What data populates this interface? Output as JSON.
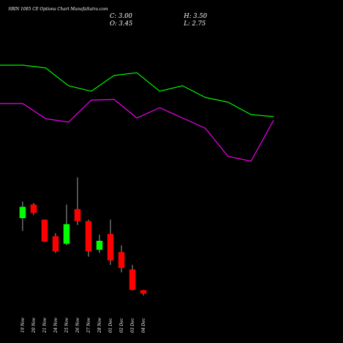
{
  "chart_data": [
    {
      "type": "candlestick",
      "title": "SBIN 1005 CE Options Chart MunafaSutra.com",
      "info": [
        "C: 3.00",
        "H: 3.50",
        "O: 3.45",
        "L: 2.75"
      ],
      "categories": [
        "19 Nov",
        "20 Nov",
        "21 Nov",
        "24 Nov",
        "25 Nov",
        "26 Nov",
        "27 Nov",
        "28 Nov",
        "01 Dec",
        "02 Dec",
        "03 Dec",
        "04 Dec"
      ],
      "open": [
        13.0,
        14.8,
        12.8,
        10.6,
        9.6,
        14.2,
        12.6,
        8.8,
        10.9,
        8.5,
        6.2,
        3.45
      ],
      "high": [
        15.2,
        15.0,
        12.8,
        11.0,
        14.8,
        18.4,
        12.8,
        10.8,
        12.8,
        9.4,
        6.8,
        3.5
      ],
      "low": [
        11.3,
        13.4,
        9.8,
        8.4,
        9.4,
        12.1,
        7.9,
        8.4,
        6.8,
        5.8,
        3.4,
        2.75
      ],
      "close": [
        14.5,
        13.7,
        9.9,
        8.6,
        12.2,
        12.6,
        8.6,
        10.0,
        7.4,
        6.4,
        3.5,
        3.0
      ],
      "up_color": "#00ff00",
      "down_color": "#ff0000",
      "ylim": [
        0,
        41.9
      ]
    },
    {
      "type": "line",
      "series": [
        {
          "color": "#00ff00",
          "values": [
            405,
            405,
            401,
            375,
            367,
            390,
            394,
            367,
            375,
            358,
            351,
            333,
            330
          ]
        },
        {
          "color": "#ff00ff",
          "values": [
            349,
            349,
            327,
            322,
            354,
            355,
            328,
            343,
            328,
            313,
            272,
            265,
            325
          ]
        }
      ],
      "ylim": [
        0,
        500
      ]
    }
  ]
}
